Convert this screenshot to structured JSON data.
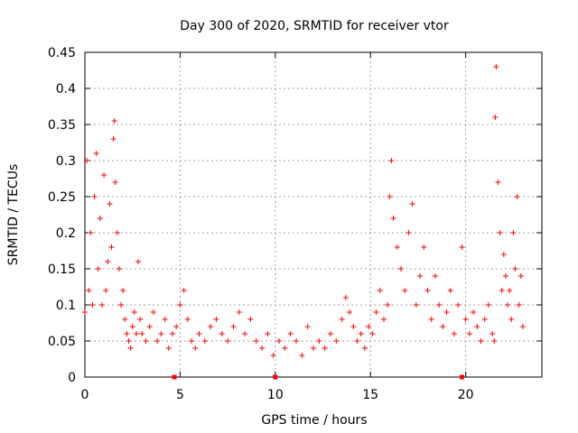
{
  "chart_data": {
    "type": "scatter",
    "title": "Day 300 of 2020, SRMTID for receiver vtor",
    "xlabel": "GPS time / hours",
    "ylabel": "SRMTID / TECUs",
    "xlim": [
      0,
      24
    ],
    "ylim": [
      0,
      0.45
    ],
    "xticks": [
      0,
      5,
      10,
      15,
      20
    ],
    "xtick_labels": [
      "0",
      "5",
      "10",
      "15",
      "20"
    ],
    "yticks": [
      0,
      0.05,
      0.1,
      0.15,
      0.2,
      0.25,
      0.3,
      0.35,
      0.4,
      0.45
    ],
    "ytick_labels": [
      "0",
      "0.05",
      "0.1",
      "0.15",
      "0.2",
      "0.25",
      "0.3",
      "0.35",
      "0.4",
      "0.45"
    ],
    "grid": true,
    "marker": "+",
    "series": [
      {
        "name": "SRMTID",
        "color": "#ff0000",
        "x": [
          0.0,
          0.1,
          0.2,
          0.3,
          0.4,
          0.5,
          0.6,
          0.7,
          0.8,
          0.9,
          1.0,
          1.1,
          1.2,
          1.3,
          1.4,
          1.5,
          1.55,
          1.6,
          1.7,
          1.8,
          1.9,
          2.0,
          2.1,
          2.2,
          2.3,
          2.4,
          2.5,
          2.6,
          2.7,
          2.8,
          2.9,
          3.0,
          3.2,
          3.4,
          3.6,
          3.8,
          4.0,
          4.2,
          4.4,
          4.6,
          4.8,
          5.0,
          5.2,
          5.4,
          5.6,
          5.8,
          6.0,
          6.3,
          6.6,
          6.9,
          7.2,
          7.5,
          7.8,
          8.1,
          8.4,
          8.7,
          9.0,
          9.3,
          9.6,
          9.9,
          10.2,
          10.5,
          10.8,
          11.1,
          11.4,
          11.7,
          12.0,
          12.3,
          12.6,
          12.9,
          13.2,
          13.5,
          13.7,
          13.9,
          14.1,
          14.3,
          14.5,
          14.7,
          14.9,
          15.1,
          15.3,
          15.5,
          15.7,
          15.9,
          16.0,
          16.1,
          16.2,
          16.4,
          16.6,
          16.8,
          17.0,
          17.2,
          17.4,
          17.6,
          17.8,
          18.0,
          18.2,
          18.4,
          18.6,
          18.8,
          19.0,
          19.2,
          19.4,
          19.6,
          19.8,
          20.0,
          20.2,
          20.4,
          20.6,
          20.8,
          21.0,
          21.2,
          21.4,
          21.5,
          21.55,
          21.6,
          21.7,
          21.8,
          21.9,
          22.0,
          22.1,
          22.2,
          22.3,
          22.4,
          22.5,
          22.6,
          22.7,
          22.8,
          22.9,
          23.0
        ],
        "y": [
          0.09,
          0.3,
          0.12,
          0.2,
          0.1,
          0.25,
          0.31,
          0.15,
          0.22,
          0.1,
          0.28,
          0.12,
          0.16,
          0.24,
          0.18,
          0.33,
          0.355,
          0.27,
          0.2,
          0.15,
          0.1,
          0.12,
          0.08,
          0.06,
          0.05,
          0.04,
          0.07,
          0.09,
          0.06,
          0.16,
          0.08,
          0.06,
          0.05,
          0.07,
          0.09,
          0.05,
          0.06,
          0.08,
          0.04,
          0.06,
          0.07,
          0.1,
          0.12,
          0.08,
          0.05,
          0.04,
          0.06,
          0.05,
          0.07,
          0.08,
          0.06,
          0.05,
          0.07,
          0.09,
          0.06,
          0.08,
          0.05,
          0.04,
          0.06,
          0.03,
          0.05,
          0.04,
          0.06,
          0.05,
          0.03,
          0.07,
          0.04,
          0.05,
          0.04,
          0.06,
          0.05,
          0.08,
          0.11,
          0.09,
          0.07,
          0.05,
          0.06,
          0.04,
          0.07,
          0.06,
          0.09,
          0.12,
          0.08,
          0.1,
          0.25,
          0.3,
          0.22,
          0.18,
          0.15,
          0.12,
          0.2,
          0.24,
          0.1,
          0.14,
          0.18,
          0.12,
          0.08,
          0.14,
          0.1,
          0.07,
          0.09,
          0.12,
          0.06,
          0.1,
          0.18,
          0.08,
          0.06,
          0.09,
          0.07,
          0.05,
          0.08,
          0.1,
          0.06,
          0.05,
          0.36,
          0.43,
          0.27,
          0.2,
          0.12,
          0.17,
          0.14,
          0.1,
          0.12,
          0.08,
          0.2,
          0.15,
          0.25,
          0.1,
          0.14,
          0.07
        ]
      }
    ],
    "axis_markers_x": [
      4.7,
      10.0,
      19.8
    ]
  }
}
